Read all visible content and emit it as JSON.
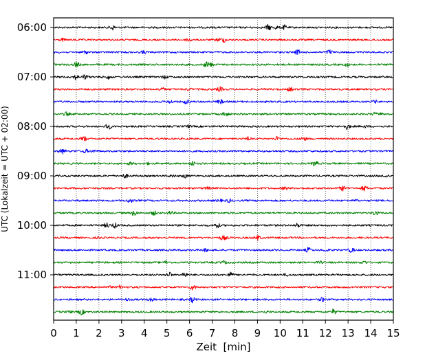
{
  "chart_data": {
    "type": "line",
    "title": "",
    "xlabel": "Zeit  [min]",
    "ylabel": "UTC (Lokalzeit = UTC + 02:00)",
    "xlim": [
      0,
      15
    ],
    "x_ticks": [
      "0",
      "1",
      "2",
      "3",
      "4",
      "5",
      "6",
      "7",
      "8",
      "9",
      "10",
      "11",
      "12",
      "13",
      "14",
      "15"
    ],
    "y_tick_labels": [
      "06:00",
      "07:00",
      "08:00",
      "09:00",
      "10:00",
      "11:00"
    ],
    "grid": "vertical dotted at each minute",
    "trace_interval_min": 15,
    "color_cycle": [
      "#000000",
      "#ff0000",
      "#0000ff",
      "#008000"
    ],
    "series": [
      {
        "name": "06:00"
      },
      {
        "name": "06:15"
      },
      {
        "name": "06:30"
      },
      {
        "name": "06:45"
      },
      {
        "name": "07:00"
      },
      {
        "name": "07:15"
      },
      {
        "name": "07:30"
      },
      {
        "name": "07:45"
      },
      {
        "name": "08:00"
      },
      {
        "name": "08:15"
      },
      {
        "name": "08:30"
      },
      {
        "name": "08:45"
      },
      {
        "name": "09:00"
      },
      {
        "name": "09:15"
      },
      {
        "name": "09:30"
      },
      {
        "name": "09:45"
      },
      {
        "name": "10:00"
      },
      {
        "name": "10:15"
      },
      {
        "name": "10:30"
      },
      {
        "name": "10:45"
      },
      {
        "name": "11:00"
      },
      {
        "name": "11:15"
      },
      {
        "name": "11:30"
      },
      {
        "name": "11:45"
      }
    ]
  }
}
